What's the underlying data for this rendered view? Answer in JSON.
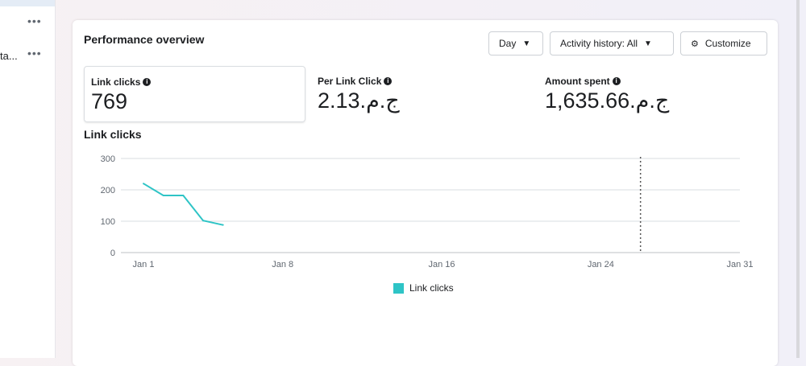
{
  "sidebar": {
    "items": [
      {
        "text": "",
        "menu": "•••"
      },
      {
        "text": "ta...",
        "menu": "•••"
      }
    ]
  },
  "panel": {
    "title": "Performance overview",
    "controls": {
      "day": "Day",
      "activity": "Activity history: All",
      "customize": "Customize"
    },
    "metrics": [
      {
        "label": "Link clicks",
        "value": "769"
      },
      {
        "label": "Per Link Click",
        "value": "2.13.ج.م"
      },
      {
        "label": "Amount spent",
        "value": "1,635.66.ج.م"
      }
    ],
    "chart_title": "Link clicks"
  },
  "chart_data": {
    "type": "line",
    "title": "Link clicks",
    "x": [
      "Jan 1",
      "Jan 2",
      "Jan 3",
      "Jan 4",
      "Jan 5"
    ],
    "series": [
      {
        "name": "Link clicks",
        "values": [
          220,
          182,
          182,
          102,
          88
        ],
        "color": "#2ec4c6"
      }
    ],
    "xticks": [
      "Jan 1",
      "Jan 8",
      "Jan 16",
      "Jan 24",
      "Jan 31"
    ],
    "xtick_days": [
      1,
      8,
      16,
      24,
      31
    ],
    "yticks": [
      "0",
      "100",
      "200",
      "300"
    ],
    "ylim": [
      0,
      300
    ],
    "xlim_days": [
      1,
      31
    ],
    "marker_day": 26,
    "grid": true,
    "legend": "bottom"
  }
}
